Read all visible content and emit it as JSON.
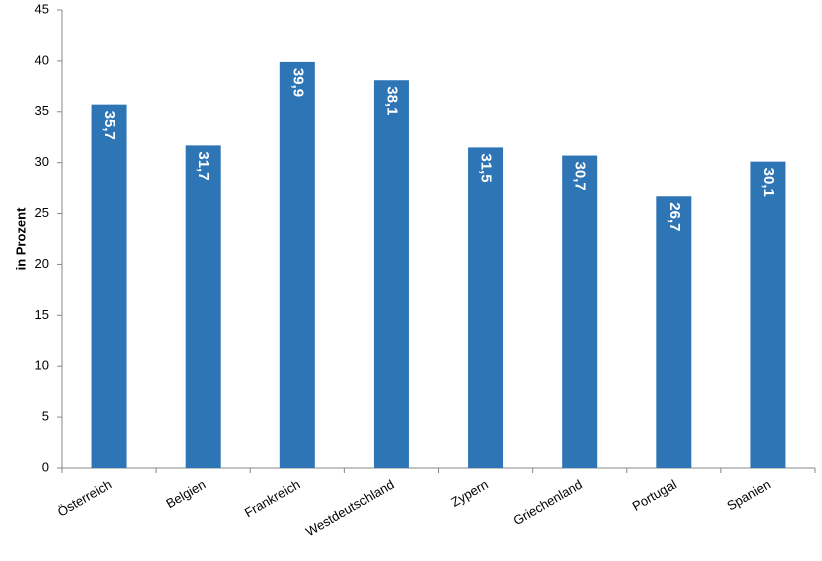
{
  "chart_data": {
    "type": "bar",
    "y_label": "in Prozent",
    "categories": [
      "Österreich",
      "Belgien",
      "Frankreich",
      "Westdeutschland",
      "Zypern",
      "Griechenland",
      "Portugal",
      "Spanien"
    ],
    "values": [
      35.7,
      31.7,
      39.9,
      38.1,
      31.5,
      30.7,
      26.7,
      30.1
    ],
    "value_labels": [
      "35,7",
      "31,7",
      "39,9",
      "38,1",
      "31,5",
      "30,7",
      "26,7",
      "30,1"
    ],
    "color": "#2e75b6",
    "ylim": [
      0,
      45
    ],
    "yticks": [
      0,
      5,
      10,
      15,
      20,
      25,
      30,
      35,
      40,
      45
    ],
    "grid": false
  }
}
